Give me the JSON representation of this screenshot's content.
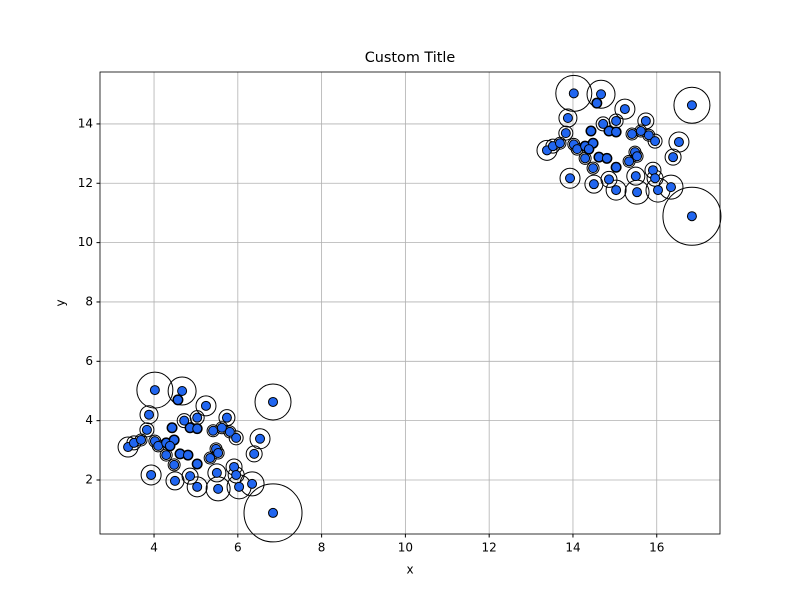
{
  "chart_data": {
    "type": "scatter",
    "title": "Custom Title",
    "xlabel": "x",
    "ylabel": "y",
    "x": [
      4.02,
      4.67,
      4.57,
      6.84,
      5.24,
      3.88,
      5.74,
      5.03,
      4.72,
      3.83,
      4.43,
      4.86,
      5.03,
      5.41,
      5.62,
      5.81,
      5.96,
      6.53,
      3.38,
      3.52,
      3.69,
      4.02,
      4.1,
      4.29,
      4.48,
      4.38,
      5.48,
      5.53,
      6.39,
      4.29,
      4.62,
      4.81,
      5.34,
      5.03,
      4.48,
      5.91,
      5.5,
      5.96,
      3.93,
      4.86,
      4.5,
      6.34,
      5.03,
      5.53,
      6.03,
      6.84,
      14.02,
      14.67,
      14.57,
      16.84,
      15.24,
      13.88,
      15.74,
      15.03,
      14.72,
      13.83,
      14.43,
      14.86,
      15.03,
      15.41,
      15.62,
      15.81,
      15.96,
      16.53,
      13.38,
      13.52,
      13.69,
      14.02,
      14.1,
      14.29,
      14.48,
      14.38,
      15.48,
      15.53,
      16.39,
      14.29,
      14.62,
      14.81,
      15.34,
      15.03,
      14.48,
      15.91,
      15.5,
      15.96,
      13.93,
      14.86,
      14.5,
      16.34,
      15.03,
      15.53,
      16.03,
      16.84
    ],
    "y": [
      5.03,
      5.0,
      4.7,
      4.63,
      4.5,
      4.2,
      4.1,
      4.1,
      4.0,
      3.69,
      3.76,
      3.76,
      3.73,
      3.66,
      3.76,
      3.62,
      3.42,
      3.39,
      3.11,
      3.25,
      3.35,
      3.31,
      3.15,
      3.25,
      3.35,
      3.15,
      3.05,
      2.91,
      2.88,
      2.84,
      2.88,
      2.84,
      2.74,
      2.54,
      2.51,
      2.44,
      2.24,
      2.17,
      2.17,
      2.13,
      1.97,
      1.87,
      1.77,
      1.7,
      1.77,
      0.89,
      15.03,
      15.0,
      14.7,
      14.63,
      14.5,
      14.2,
      14.1,
      14.1,
      14.0,
      13.69,
      13.76,
      13.76,
      13.73,
      13.66,
      13.76,
      13.62,
      13.42,
      13.39,
      13.11,
      13.25,
      13.35,
      13.31,
      13.15,
      13.25,
      13.35,
      13.15,
      13.05,
      12.91,
      12.88,
      12.84,
      12.88,
      12.84,
      12.74,
      12.54,
      12.51,
      12.44,
      12.24,
      12.17,
      12.17,
      12.13,
      11.97,
      11.87,
      11.77,
      11.7,
      11.77,
      10.89
    ],
    "sizes": [
      18,
      14,
      5,
      18,
      10,
      9,
      8,
      7,
      7,
      7,
      5,
      5,
      5,
      6,
      6,
      6,
      7,
      10,
      10,
      7,
      6,
      6,
      6,
      5,
      5,
      5,
      6,
      6,
      8,
      6,
      5,
      5,
      6,
      5,
      6,
      8,
      9,
      8,
      10,
      8,
      9,
      12,
      10,
      12,
      12,
      29,
      18,
      14,
      5,
      18,
      10,
      9,
      8,
      7,
      7,
      7,
      5,
      5,
      5,
      6,
      6,
      6,
      7,
      10,
      10,
      7,
      6,
      6,
      6,
      5,
      5,
      5,
      6,
      6,
      8,
      6,
      5,
      5,
      6,
      5,
      6,
      8,
      9,
      8,
      10,
      8,
      9,
      12,
      10,
      12,
      12,
      29
    ],
    "color": "#2166f0",
    "edgecolor": "#000000",
    "xlim": [
      2.71,
      17.51
    ],
    "ylim": [
      0.18,
      15.75
    ],
    "xticks": [
      4,
      6,
      8,
      10,
      12,
      14,
      16
    ],
    "yticks": [
      2,
      4,
      6,
      8,
      10,
      12,
      14
    ],
    "grid": true
  }
}
